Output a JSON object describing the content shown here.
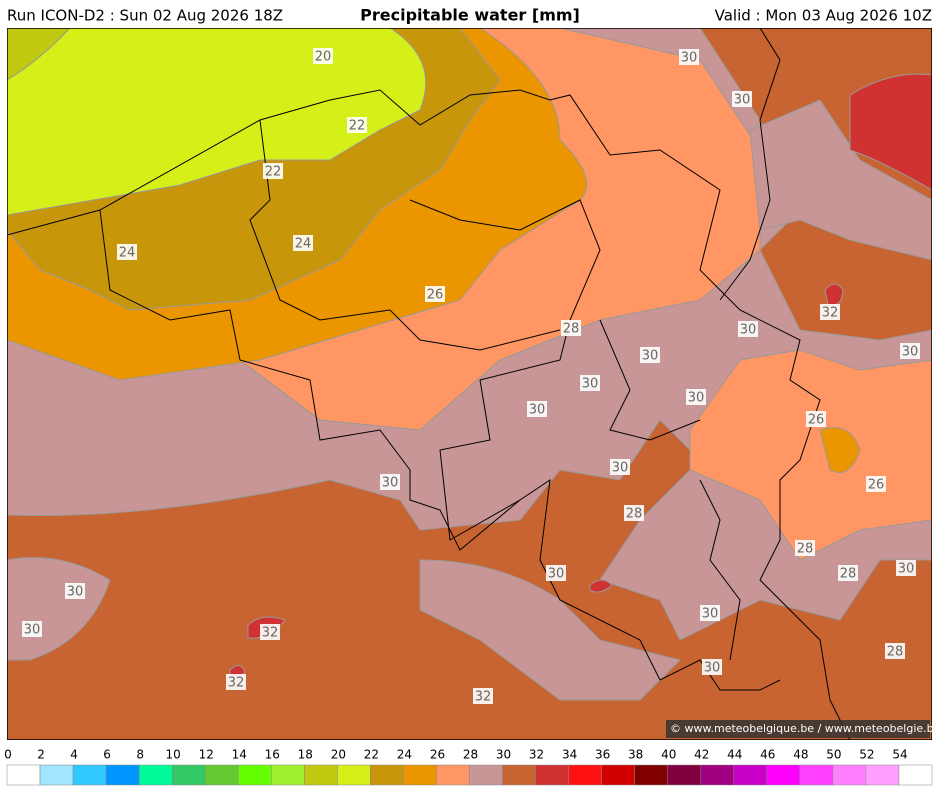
{
  "header": {
    "run": "Run ICON-D2 : Sun 02 Aug 2026 18Z",
    "title": "Precipitable water [mm]",
    "valid": "Valid : Mon 03 Aug 2026 10Z"
  },
  "contour_labels": [
    20,
    22,
    22,
    24,
    24,
    26,
    28,
    30,
    30,
    32,
    30,
    30,
    30,
    30,
    30,
    30,
    26,
    26,
    30,
    30,
    28,
    28,
    28,
    30,
    30,
    30,
    30,
    32,
    30,
    28,
    30,
    32,
    32
  ],
  "copyright": "© www.meteobelgique.be / www.meteobelgie.be",
  "colorbar": {
    "ticks": [
      0,
      2,
      4,
      6,
      8,
      10,
      12,
      14,
      16,
      18,
      20,
      22,
      24,
      26,
      28,
      30,
      32,
      34,
      36,
      38,
      40,
      42,
      44,
      46,
      48,
      50,
      52,
      54
    ],
    "colors": [
      "#ffffff",
      "#a0e6ff",
      "#30c8ff",
      "#0096ff",
      "#00fa9a",
      "#32c864",
      "#64c832",
      "#64ff00",
      "#a0f030",
      "#c0c810",
      "#d4f018",
      "#c8960a",
      "#eb9600",
      "#ff9664",
      "#c89696",
      "#c86432",
      "#d03232",
      "#ff1010",
      "#d00000",
      "#800000",
      "#800040",
      "#a00080",
      "#c800c8",
      "#ff00ff",
      "#ff40ff",
      "#ff80ff",
      "#ffa0ff",
      "#ffffff"
    ]
  }
}
